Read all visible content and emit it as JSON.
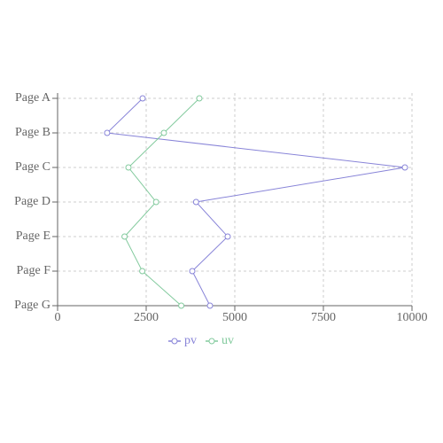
{
  "chart_data": {
    "type": "line",
    "layout": "vertical",
    "categories": [
      "Page A",
      "Page B",
      "Page C",
      "Page D",
      "Page E",
      "Page F",
      "Page G"
    ],
    "series": [
      {
        "name": "pv",
        "color": "#8884d8",
        "values": [
          2400,
          1398,
          9800,
          3908,
          4800,
          3800,
          4300
        ]
      },
      {
        "name": "uv",
        "color": "#82ca9d",
        "values": [
          4000,
          3000,
          2000,
          2780,
          1890,
          2390,
          3490
        ]
      }
    ],
    "xlim": [
      0,
      10000
    ],
    "xticks": [
      0,
      2500,
      5000,
      7500,
      10000
    ],
    "grid": true,
    "legend": "bottom"
  }
}
